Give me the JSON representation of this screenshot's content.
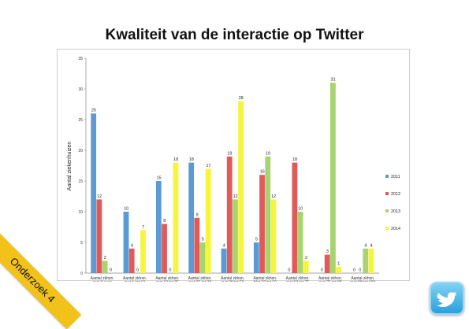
{
  "title": "Kwaliteit van de interactie op Twitter",
  "corner_label": "Onderzoek 4",
  "logo_icon": "twitter-bird-icon",
  "chart_data": {
    "type": "bar",
    "title": "Kwaliteit van de interactie op Twitter",
    "ylabel": "Aantal ziekenhuizen",
    "ylim": [
      0,
      35
    ],
    "yticks": [
      0,
      5,
      10,
      15,
      20,
      25,
      30,
      35
    ],
    "grid": false,
    "legend_position": "right",
    "categories": [
      [
        "Aantal zkhsn.",
        "met 0 punt"
      ],
      [
        "Aantal zkhsn.",
        "met 1 tot 13",
        "punten"
      ],
      [
        "Aantal zkhsn.",
        "met 13 tot 25",
        "punten"
      ],
      [
        "Aantal zkhsn.",
        "met 25 tot 38",
        "punten"
      ],
      [
        "Aantal zkhsn.",
        "met 38 tot 50",
        "punten"
      ],
      [
        "Aantal zkhsn.",
        "Met 50 tot 63",
        "punten"
      ],
      [
        "Aantal zkhsn.",
        "met 63 tot 75",
        "punten"
      ],
      [
        "Aantal zkhsn.",
        "met 75 tot 88",
        "punten"
      ],
      [
        "Aantal zkhsn.",
        "met 88 tot 100",
        "punten"
      ]
    ],
    "series": [
      {
        "name": "2011",
        "color": "#5b9bd5",
        "values": [
          26,
          10,
          15,
          18,
          4,
          5,
          0,
          0,
          0
        ]
      },
      {
        "name": "2012",
        "color": "#e05a5a",
        "values": [
          12,
          4,
          8,
          9,
          19,
          16,
          18,
          3,
          0
        ]
      },
      {
        "name": "2013",
        "color": "#a8d46f",
        "values": [
          2,
          0,
          0,
          5,
          12,
          19,
          10,
          31,
          4
        ]
      },
      {
        "name": "2014",
        "color": "#f5f53c",
        "values": [
          0,
          7,
          18,
          17,
          28,
          12,
          2,
          1,
          4
        ]
      }
    ]
  }
}
